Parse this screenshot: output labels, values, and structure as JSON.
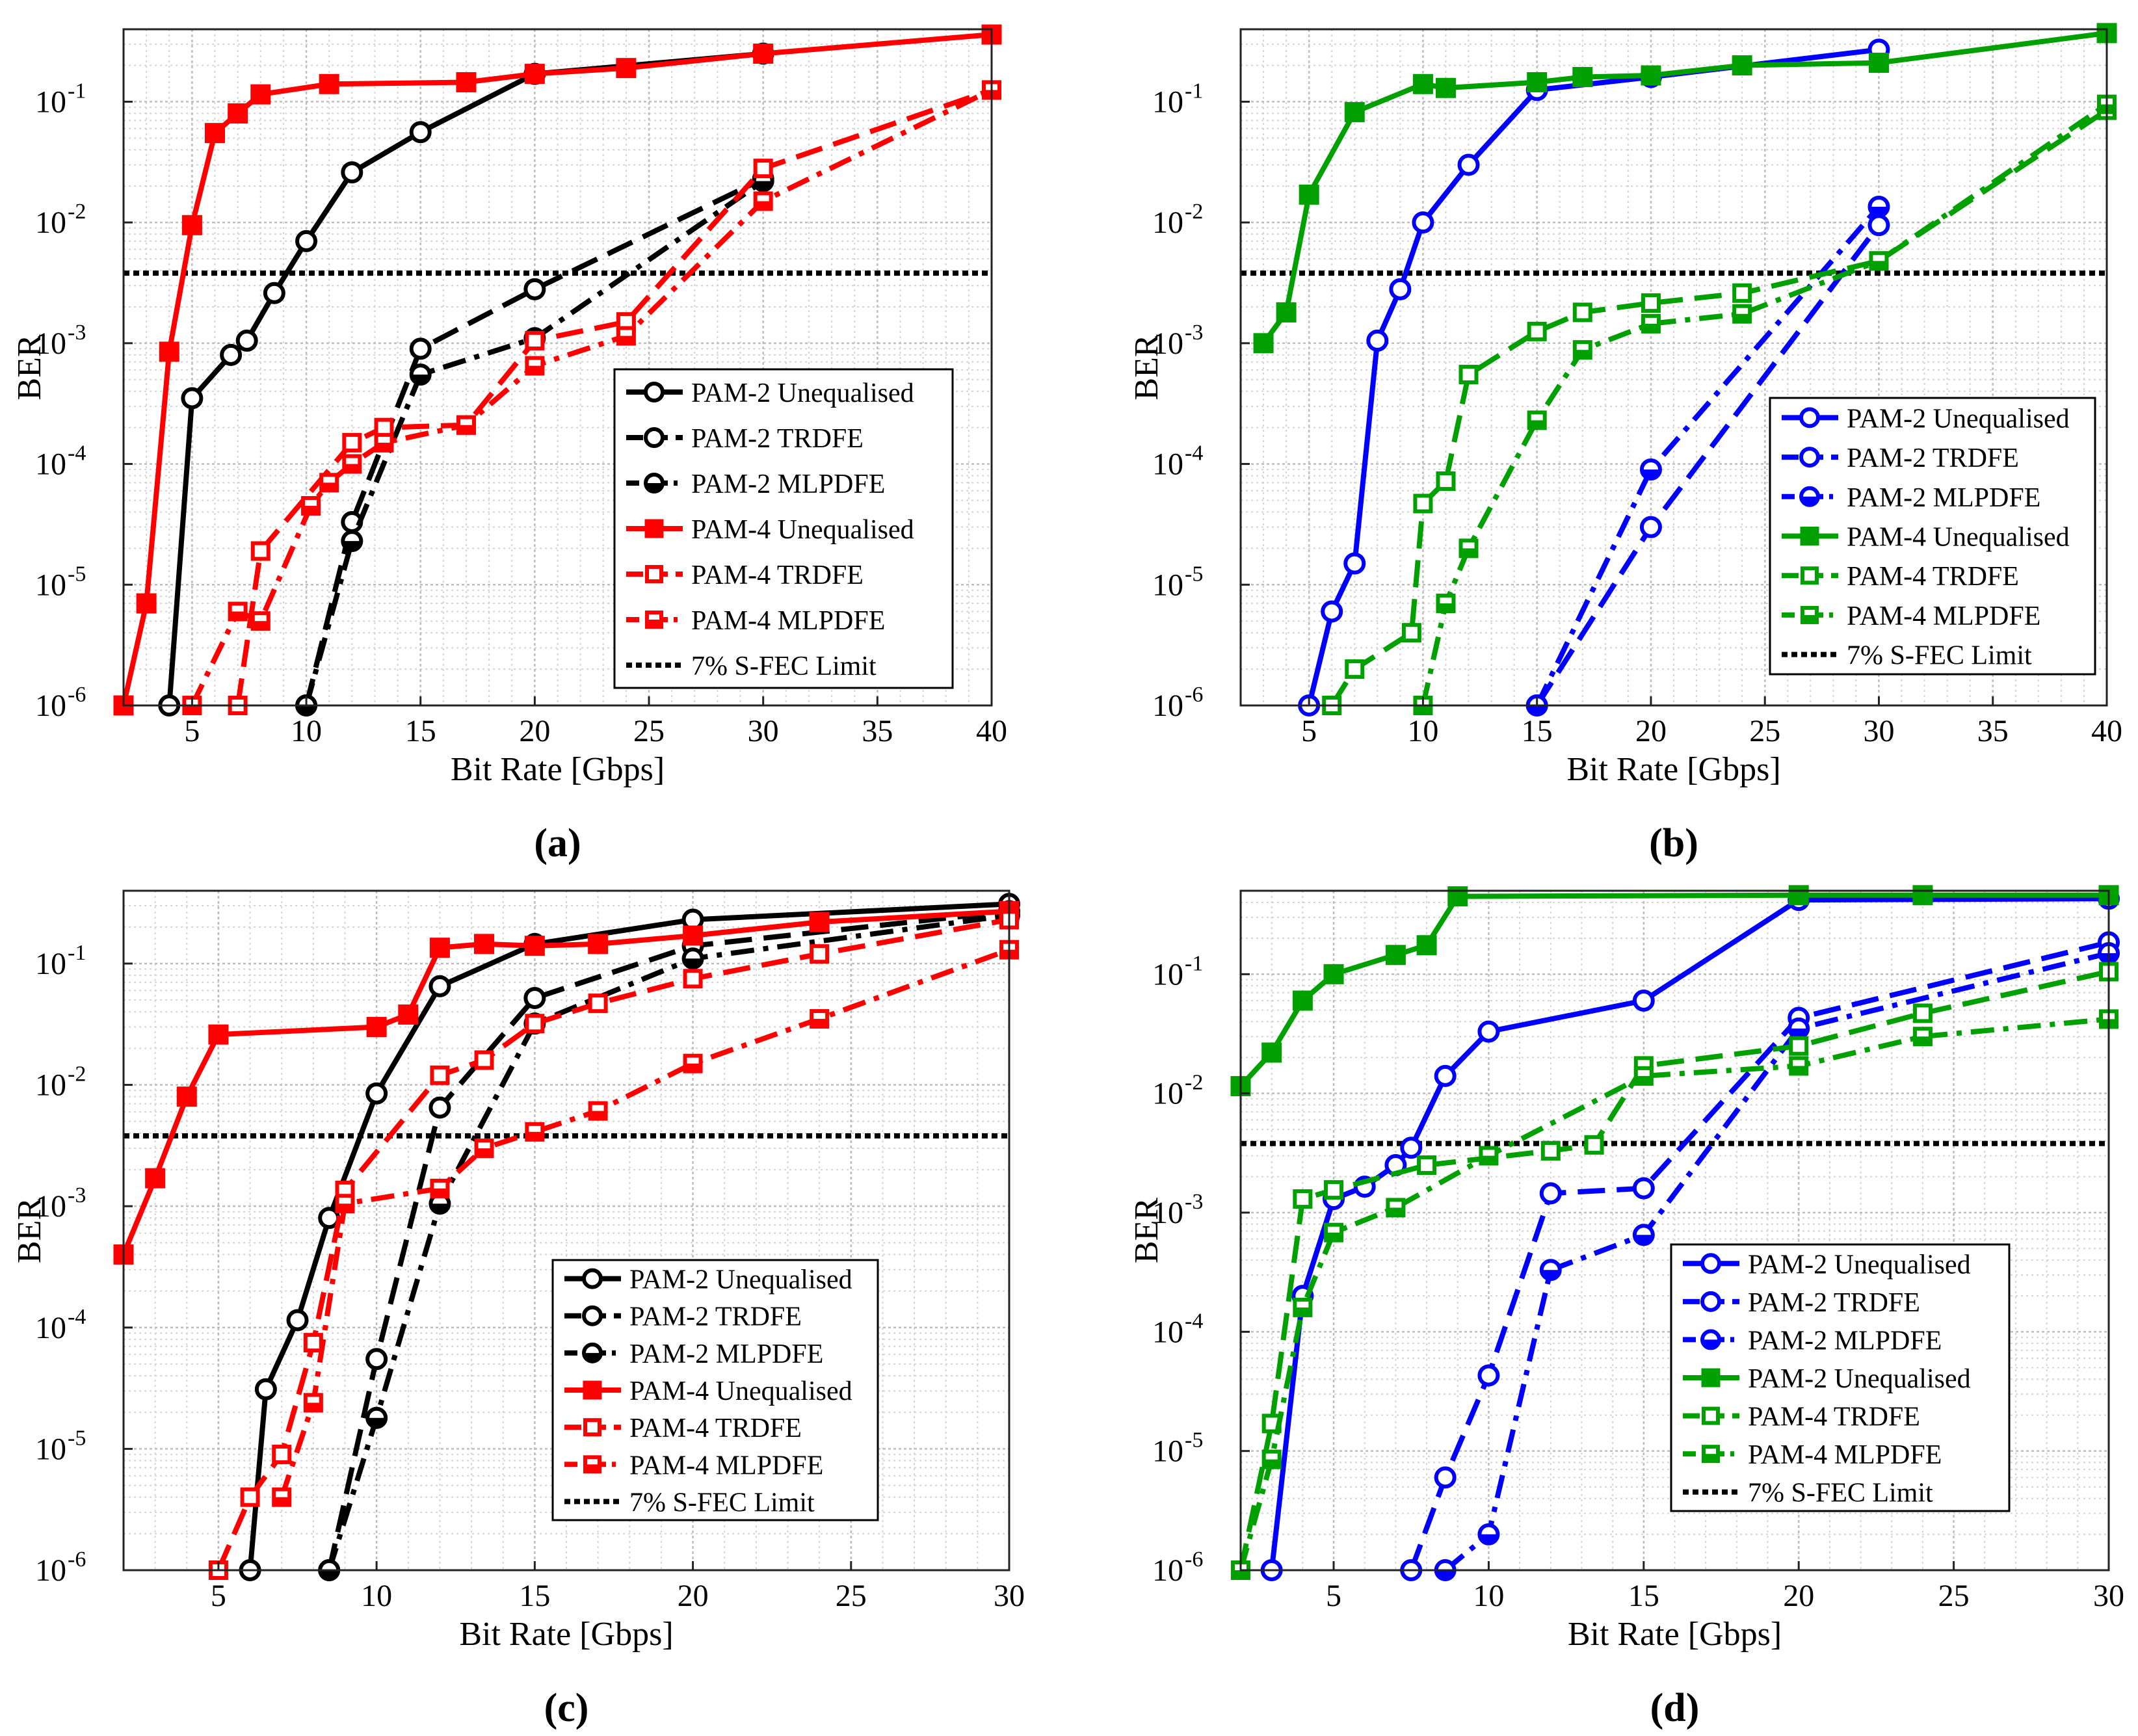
{
  "chart_data": [
    {
      "type": "line",
      "panel_label": "(a)",
      "xlabel": "Bit Rate [Gbps]",
      "ylabel": "BER",
      "xlim": [
        2,
        40
      ],
      "xticks": [
        5,
        10,
        15,
        20,
        25,
        30,
        35,
        40
      ],
      "ylim_exp": [
        -6,
        -0.4
      ],
      "yticks": [
        {
          "exp": -1,
          "label": "-1"
        },
        {
          "exp": -2,
          "label": "-2"
        },
        {
          "exp": -3,
          "label": "-3"
        },
        {
          "exp": -4,
          "label": "-4"
        },
        {
          "exp": -5,
          "label": "-5"
        },
        {
          "exp": -6,
          "label": "-6"
        }
      ],
      "fec_limit": 0.0038,
      "series": [
        {
          "name": "PAM-2 Unequalised",
          "color": "#000000",
          "style": "solid",
          "marker": "circle",
          "x": [
            4,
            5,
            6.7,
            7.4,
            8.6,
            10,
            12,
            15,
            20,
            30
          ],
          "y": [
            1e-06,
            0.00035,
            0.0008,
            0.00105,
            0.0026,
            0.007,
            0.026,
            0.056,
            0.17,
            0.25
          ]
        },
        {
          "name": "PAM-2 TRDFE",
          "color": "#000000",
          "style": "dash",
          "marker": "circle",
          "x": [
            10,
            12,
            15,
            20,
            30
          ],
          "y": [
            1e-06,
            3.3e-05,
            0.0009,
            0.0028,
            0.023
          ]
        },
        {
          "name": "PAM-2 MLPDFE",
          "color": "#000000",
          "style": "dashdot",
          "marker": "halfcircle",
          "x": [
            10,
            12,
            15,
            20,
            30
          ],
          "y": [
            1e-06,
            2.3e-05,
            0.00055,
            0.0011,
            0.022
          ]
        },
        {
          "name": "PAM-4 Unequalised",
          "color": "#ff0000",
          "style": "solid",
          "marker": "square",
          "x": [
            2,
            3,
            4,
            5,
            6,
            7,
            8,
            11,
            17,
            20,
            24,
            30,
            40
          ],
          "y": [
            1e-06,
            7e-06,
            0.00085,
            0.0095,
            0.055,
            0.08,
            0.115,
            0.14,
            0.145,
            0.17,
            0.19,
            0.25,
            0.36
          ]
        },
        {
          "name": "PAM-4 TRDFE",
          "color": "#ff0000",
          "style": "dash",
          "marker": "square-open",
          "x": [
            7,
            8,
            12,
            13.4,
            17,
            20,
            24,
            30,
            40
          ],
          "y": [
            1e-06,
            1.9e-05,
            0.00015,
            0.0002,
            0.00021,
            0.00105,
            0.0015,
            0.028,
            0.125
          ]
        },
        {
          "name": "PAM-4 MLPDFE",
          "color": "#ff0000",
          "style": "dashdot",
          "marker": "square-half",
          "x": [
            5,
            7,
            8,
            10.2,
            11,
            12,
            13.4,
            17,
            20,
            24,
            30,
            40
          ],
          "y": [
            1e-06,
            6e-06,
            5e-06,
            4.5e-05,
            7e-05,
            0.0001,
            0.00015,
            0.00021,
            0.00065,
            0.00115,
            0.015,
            0.125
          ]
        }
      ],
      "legend": {
        "entries": [
          "PAM-2 Unequalised",
          "PAM-2 TRDFE",
          "PAM-2 MLPDFE",
          "PAM-4 Unequalised",
          "PAM-4 TRDFE",
          "PAM-4 MLPDFE",
          "7% S-FEC Limit"
        ],
        "position": "bottom-right"
      }
    },
    {
      "type": "line",
      "panel_label": "(b)",
      "xlabel": "Bit Rate [Gbps]",
      "ylabel": "BER",
      "xlim": [
        2,
        40
      ],
      "xticks": [
        5,
        10,
        15,
        20,
        25,
        30,
        35,
        40
      ],
      "ylim_exp": [
        -6,
        -0.4
      ],
      "yticks": [
        {
          "exp": -1,
          "label": "-1"
        },
        {
          "exp": -2,
          "label": "-2"
        },
        {
          "exp": -3,
          "label": "-3"
        },
        {
          "exp": -4,
          "label": "-4"
        },
        {
          "exp": -5,
          "label": "-5"
        },
        {
          "exp": -6,
          "label": "-6"
        }
      ],
      "fec_limit": 0.0038,
      "series": [
        {
          "name": "PAM-2 Unequalised",
          "color": "#0000ff",
          "style": "solid",
          "marker": "circle",
          "x": [
            5,
            6,
            7,
            8,
            9,
            10,
            12,
            15,
            20,
            30
          ],
          "y": [
            1e-06,
            6e-06,
            1.5e-05,
            0.00105,
            0.0028,
            0.01,
            0.03,
            0.125,
            0.16,
            0.27
          ]
        },
        {
          "name": "PAM-2 TRDFE",
          "color": "#0000ff",
          "style": "dash",
          "marker": "circle",
          "x": [
            15,
            20,
            30
          ],
          "y": [
            1e-06,
            3e-05,
            0.0095
          ]
        },
        {
          "name": "PAM-2 MLPDFE",
          "color": "#0000ff",
          "style": "dashdot",
          "marker": "halfcircle",
          "x": [
            15,
            20,
            30
          ],
          "y": [
            1e-06,
            9e-05,
            0.0135
          ]
        },
        {
          "name": "PAM-4 Unequalised",
          "color": "#00a000",
          "style": "solid",
          "marker": "square",
          "x": [
            3,
            4,
            5,
            7,
            10,
            11,
            15,
            17,
            20,
            24,
            30,
            40
          ],
          "y": [
            0.001,
            0.0018,
            0.017,
            0.082,
            0.14,
            0.13,
            0.145,
            0.16,
            0.165,
            0.2,
            0.21,
            0.37
          ]
        },
        {
          "name": "PAM-4 TRDFE",
          "color": "#00a000",
          "style": "dash",
          "marker": "square-open",
          "x": [
            6,
            7,
            9.5,
            10,
            11,
            12,
            15,
            17,
            20,
            24,
            30,
            40
          ],
          "y": [
            1e-06,
            2e-06,
            4e-06,
            4.7e-05,
            7.2e-05,
            0.00055,
            0.00125,
            0.0018,
            0.00215,
            0.0026,
            0.0048,
            0.085
          ]
        },
        {
          "name": "PAM-4 MLPDFE",
          "color": "#00a000",
          "style": "dashdot",
          "marker": "square-half",
          "x": [
            10,
            11,
            12,
            15,
            17,
            20,
            24,
            30,
            40
          ],
          "y": [
            1e-06,
            7e-06,
            2e-05,
            0.00023,
            0.00088,
            0.00145,
            0.00175,
            0.0048,
            0.095
          ]
        }
      ],
      "legend": {
        "entries": [
          "PAM-2 Unequalised",
          "PAM-2 TRDFE",
          "PAM-2 MLPDFE",
          "PAM-4 Unequalised",
          "PAM-4 TRDFE",
          "PAM-4 MLPDFE",
          "7% S-FEC Limit"
        ],
        "position": "bottom-right"
      }
    },
    {
      "type": "line",
      "panel_label": "(c)",
      "xlabel": "Bit Rate [Gbps]",
      "ylabel": "BER",
      "xlim": [
        2,
        30
      ],
      "xticks": [
        5,
        10,
        15,
        20,
        25,
        30
      ],
      "ylim_exp": [
        -6,
        -0.4
      ],
      "yticks": [
        {
          "exp": -1,
          "label": "-1"
        },
        {
          "exp": -2,
          "label": "-2"
        },
        {
          "exp": -3,
          "label": "-3"
        },
        {
          "exp": -4,
          "label": "-4"
        },
        {
          "exp": -5,
          "label": "-5"
        },
        {
          "exp": -6,
          "label": "-6"
        }
      ],
      "fec_limit": 0.0038,
      "series": [
        {
          "name": "PAM-2 Unequalised",
          "color": "#000000",
          "style": "solid",
          "marker": "circle",
          "x": [
            6,
            6.5,
            7.5,
            8.5,
            10,
            12,
            15,
            20,
            30
          ],
          "y": [
            1e-06,
            3.1e-05,
            0.000115,
            0.0008,
            0.0085,
            0.065,
            0.145,
            0.23,
            0.31
          ]
        },
        {
          "name": "PAM-2 TRDFE",
          "color": "#000000",
          "style": "dash",
          "marker": "circle",
          "x": [
            8.5,
            10,
            12,
            15,
            20,
            30
          ],
          "y": [
            1e-06,
            5.5e-05,
            0.0065,
            0.052,
            0.14,
            0.27
          ]
        },
        {
          "name": "PAM-2 MLPDFE",
          "color": "#000000",
          "style": "dashdot",
          "marker": "halfcircle",
          "x": [
            8.5,
            10,
            12,
            15,
            20,
            30
          ],
          "y": [
            1e-06,
            1.8e-05,
            0.00105,
            0.032,
            0.11,
            0.25
          ]
        },
        {
          "name": "PAM-4 Unequalised",
          "color": "#ff0000",
          "style": "solid",
          "marker": "square",
          "x": [
            2,
            3,
            4,
            5,
            10,
            11,
            12,
            13.4,
            15,
            17,
            20,
            24,
            30
          ],
          "y": [
            0.0004,
            0.0017,
            0.008,
            0.026,
            0.03,
            0.038,
            0.135,
            0.145,
            0.14,
            0.145,
            0.17,
            0.22,
            0.27
          ]
        },
        {
          "name": "PAM-4 TRDFE",
          "color": "#ff0000",
          "style": "dash",
          "marker": "square-open",
          "x": [
            5,
            6,
            7,
            8,
            9,
            12,
            13.4,
            15,
            17,
            20,
            24,
            30
          ],
          "y": [
            1e-06,
            4e-06,
            9e-06,
            7.5e-05,
            0.00135,
            0.012,
            0.016,
            0.032,
            0.047,
            0.075,
            0.12,
            0.23
          ]
        },
        {
          "name": "PAM-4 MLPDFE",
          "color": "#ff0000",
          "style": "dashdot",
          "marker": "square-half",
          "x": [
            7,
            8,
            9,
            12,
            13.4,
            15,
            17,
            20,
            24,
            30
          ],
          "y": [
            4e-06,
            2.4e-05,
            0.00105,
            0.0014,
            0.003,
            0.0041,
            0.0061,
            0.015,
            0.035,
            0.13
          ]
        }
      ],
      "legend": {
        "entries": [
          "PAM-2 Unequalised",
          "PAM-2 TRDFE",
          "PAM-2 MLPDFE",
          "PAM-4 Unequalised",
          "PAM-4 TRDFE",
          "PAM-4 MLPDFE",
          "7% S-FEC Limit"
        ],
        "position": "bottom-right"
      }
    },
    {
      "type": "line",
      "panel_label": "(d)",
      "xlabel": "Bit Rate [Gbps]",
      "ylabel": "BER",
      "xlim": [
        2,
        30
      ],
      "xticks": [
        5,
        10,
        15,
        20,
        25,
        30
      ],
      "ylim_exp": [
        -6,
        -0.3
      ],
      "yticks": [
        {
          "exp": -1,
          "label": "-1"
        },
        {
          "exp": -2,
          "label": "-2"
        },
        {
          "exp": -3,
          "label": "-3"
        },
        {
          "exp": -4,
          "label": "-4"
        },
        {
          "exp": -5,
          "label": "-5"
        },
        {
          "exp": -6,
          "label": "-6"
        }
      ],
      "fec_limit": 0.0038,
      "series": [
        {
          "name": "PAM-2 Unequalised",
          "color": "#0000ff",
          "style": "solid",
          "marker": "circle",
          "x": [
            3,
            4,
            5,
            6,
            7,
            7.5,
            8.6,
            10,
            15,
            20,
            30
          ],
          "y": [
            1e-06,
            0.0002,
            0.0013,
            0.00165,
            0.0025,
            0.0035,
            0.014,
            0.033,
            0.06,
            0.42,
            0.43
          ]
        },
        {
          "name": "PAM-2 TRDFE",
          "color": "#0000ff",
          "style": "dash",
          "marker": "circle",
          "x": [
            7.5,
            8.6,
            10,
            12,
            15,
            20,
            30
          ],
          "y": [
            1e-06,
            6e-06,
            4.3e-05,
            0.00145,
            0.0016,
            0.043,
            0.185
          ]
        },
        {
          "name": "PAM-2 MLPDFE",
          "color": "#0000ff",
          "style": "dashdot",
          "marker": "halfcircle",
          "x": [
            8.6,
            10,
            12,
            15,
            20,
            30
          ],
          "y": [
            1e-06,
            2e-06,
            0.00033,
            0.00065,
            0.035,
            0.15
          ]
        },
        {
          "name": "PAM-2 Unequalised",
          "color": "#00a000",
          "style": "solid",
          "marker": "square",
          "x": [
            2,
            3,
            4,
            5,
            7,
            8,
            9,
            20,
            24,
            30
          ],
          "y": [
            0.0115,
            0.022,
            0.06,
            0.1,
            0.145,
            0.175,
            0.45,
            0.46,
            0.46,
            0.46
          ]
        },
        {
          "name": "PAM-4 TRDFE",
          "color": "#00a000",
          "style": "dash",
          "marker": "square-open",
          "x": [
            2,
            3,
            4,
            5,
            8,
            12,
            13.4,
            15,
            20,
            24,
            30
          ],
          "y": [
            1e-06,
            1.7e-05,
            0.0013,
            0.00155,
            0.0025,
            0.0033,
            0.0037,
            0.017,
            0.025,
            0.047,
            0.105
          ]
        },
        {
          "name": "PAM-4 MLPDFE",
          "color": "#00a000",
          "style": "dashdot",
          "marker": "square-half",
          "x": [
            2,
            3,
            4,
            5,
            7,
            10,
            15,
            20,
            24,
            30
          ],
          "y": [
            1e-06,
            8.5e-06,
            0.00016,
            0.00068,
            0.0011,
            0.003,
            0.014,
            0.017,
            0.03,
            0.042
          ]
        }
      ],
      "legend": {
        "entries": [
          "PAM-2 Unequalised",
          "PAM-2 TRDFE",
          "PAM-2 MLPDFE",
          "PAM-2 Unequalised",
          "PAM-4 TRDFE",
          "PAM-4 MLPDFE",
          "7% S-FEC Limit"
        ],
        "position": "bottom-right"
      }
    }
  ]
}
